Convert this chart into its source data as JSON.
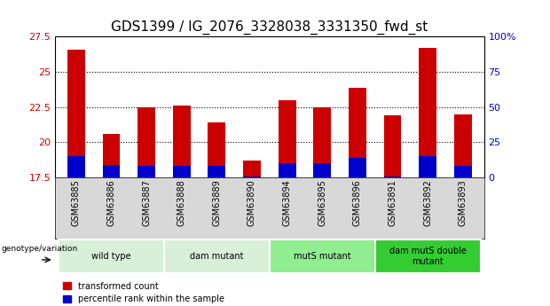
{
  "title": "GDS1399 / IG_2076_3328038_3331350_fwd_st",
  "samples": [
    "GSM63885",
    "GSM63886",
    "GSM63887",
    "GSM63888",
    "GSM63889",
    "GSM63890",
    "GSM63894",
    "GSM63895",
    "GSM63896",
    "GSM63891",
    "GSM63892",
    "GSM63893"
  ],
  "red_values": [
    26.6,
    20.6,
    22.5,
    22.6,
    21.4,
    18.7,
    23.0,
    22.5,
    23.9,
    21.9,
    26.7,
    22.0
  ],
  "blue_values": [
    19.0,
    18.4,
    18.3,
    18.3,
    18.3,
    17.6,
    18.5,
    18.5,
    18.9,
    17.6,
    19.0,
    18.3
  ],
  "ymin": 17.5,
  "ymax": 27.5,
  "yticks": [
    17.5,
    20.0,
    22.5,
    25.0,
    27.5
  ],
  "ytick_labels": [
    "17.5",
    "20",
    "22.5",
    "25",
    "27.5"
  ],
  "right_ytick_pcts": [
    0,
    25,
    50,
    75,
    100
  ],
  "right_yticklabels": [
    "0",
    "25",
    "50",
    "75",
    "100%"
  ],
  "bar_width": 0.5,
  "red_color": "#cc0000",
  "blue_color": "#0000cc",
  "bg_color": "#ffffff",
  "tick_color_left": "#cc0000",
  "tick_color_right": "#0000cc",
  "title_fontsize": 11,
  "group_configs": [
    {
      "start": 0,
      "end": 3,
      "color": "#d8f0d8",
      "label": "wild type"
    },
    {
      "start": 3,
      "end": 6,
      "color": "#d8f0d8",
      "label": "dam mutant"
    },
    {
      "start": 6,
      "end": 9,
      "color": "#90ee90",
      "label": "mutS mutant"
    },
    {
      "start": 9,
      "end": 12,
      "color": "#33cc33",
      "label": "dam mutS double\nmutant"
    }
  ]
}
